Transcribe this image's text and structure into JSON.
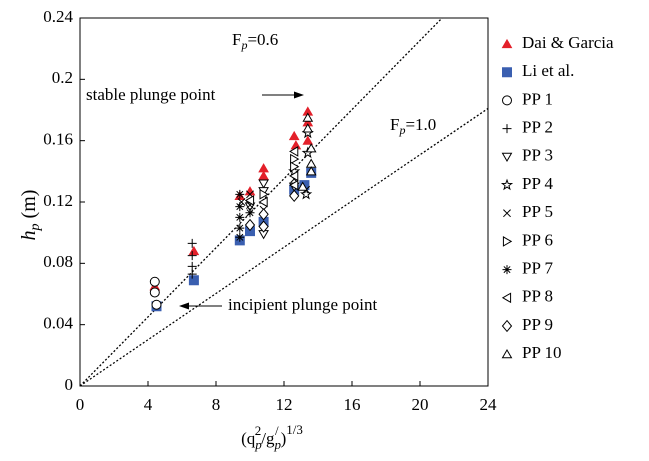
{
  "chart_data": {
    "type": "scatter",
    "xlabel": [
      "(q",
      "p",
      "2",
      "/g",
      "p",
      "/",
      ")",
      "1/3"
    ],
    "ylabel": [
      "h",
      "p",
      " (m)"
    ],
    "xlim": [
      0,
      24
    ],
    "ylim": [
      0,
      0.24
    ],
    "xticks": [
      0,
      4,
      8,
      12,
      16,
      20,
      24
    ],
    "yticks": [
      0,
      0.04,
      0.08,
      0.12,
      0.16,
      0.2,
      0.24
    ],
    "reference_lines": [
      {
        "label": [
          "F",
          "p",
          "=0.6"
        ],
        "x": [
          0,
          21.3
        ],
        "y": [
          0,
          0.24
        ]
      },
      {
        "label": [
          "F",
          "p",
          "=1.0"
        ],
        "x": [
          0,
          24
        ],
        "y": [
          0,
          0.181
        ]
      }
    ],
    "annotations": [
      "stable plunge point",
      "incipient plunge point"
    ],
    "series": [
      {
        "name": "Dai & Garcia",
        "color": "#e3202a",
        "marker": "triangle-filled",
        "x": [
          4.4,
          6.7,
          9.4,
          10,
          10.8,
          10.8,
          12.6,
          12.7,
          13.4,
          13.4,
          13.4
        ],
        "y": [
          0.065,
          0.088,
          0.124,
          0.127,
          0.142,
          0.137,
          0.163,
          0.157,
          0.179,
          0.172,
          0.16
        ]
      },
      {
        "name": "Li et al.",
        "color": "#3a5fb0",
        "marker": "square-filled",
        "x": [
          4.5,
          6.7,
          9.4,
          10,
          10.8,
          12.6,
          13.2,
          13.6
        ],
        "y": [
          0.052,
          0.069,
          0.095,
          0.101,
          0.107,
          0.128,
          0.131,
          0.139
        ]
      },
      {
        "name": "PP 1",
        "color": "#000000",
        "marker": "circle",
        "x": [
          4.4,
          4.4,
          4.5
        ],
        "y": [
          0.068,
          0.061,
          0.053
        ]
      },
      {
        "name": "PP 2",
        "color": "#000000",
        "marker": "plus",
        "x": [
          6.6,
          6.6,
          6.6,
          6.6
        ],
        "y": [
          0.093,
          0.085,
          0.078,
          0.073
        ]
      },
      {
        "name": "PP 3",
        "color": "#000000",
        "marker": "triangle-down",
        "x": [
          10.8,
          10.8,
          10,
          10.8,
          12.6
        ],
        "y": [
          0.132,
          0.127,
          0.117,
          0.099,
          0.13
        ]
      },
      {
        "name": "PP 4",
        "color": "#000000",
        "marker": "star",
        "x": [
          13.4,
          13.4,
          12.6,
          13.3
        ],
        "y": [
          0.165,
          0.152,
          0.14,
          0.125
        ]
      },
      {
        "name": "PP 5",
        "color": "#000000",
        "marker": "x",
        "x": [
          9.5,
          10,
          10,
          10.8,
          12.6,
          13.3
        ],
        "y": [
          0.12,
          0.125,
          0.118,
          0.115,
          0.135,
          0.128
        ]
      },
      {
        "name": "PP 6",
        "color": "#000000",
        "marker": "triangle-right",
        "x": [
          10.8,
          12.6,
          12.6
        ],
        "y": [
          0.125,
          0.148,
          0.143
        ]
      },
      {
        "name": "PP 7",
        "color": "#000000",
        "marker": "asterisk",
        "x": [
          9.4,
          9.4,
          9.4,
          9.4,
          9.4,
          10
        ],
        "y": [
          0.125,
          0.117,
          0.11,
          0.103,
          0.097,
          0.113
        ]
      },
      {
        "name": "PP 8",
        "color": "#000000",
        "marker": "triangle-left",
        "x": [
          10,
          10.8,
          12.6,
          12.6,
          12.6
        ],
        "y": [
          0.121,
          0.12,
          0.153,
          0.137,
          0.131
        ]
      },
      {
        "name": "PP 9",
        "color": "#000000",
        "marker": "diamond",
        "x": [
          10.8,
          10.8,
          10,
          12.6
        ],
        "y": [
          0.112,
          0.104,
          0.105,
          0.124
        ]
      },
      {
        "name": "PP 10",
        "color": "#000000",
        "marker": "triangle-up",
        "x": [
          13.4,
          13.4,
          13.6,
          13.6,
          13.6,
          13.1
        ],
        "y": [
          0.175,
          0.168,
          0.155,
          0.145,
          0.14,
          0.13
        ]
      }
    ]
  }
}
